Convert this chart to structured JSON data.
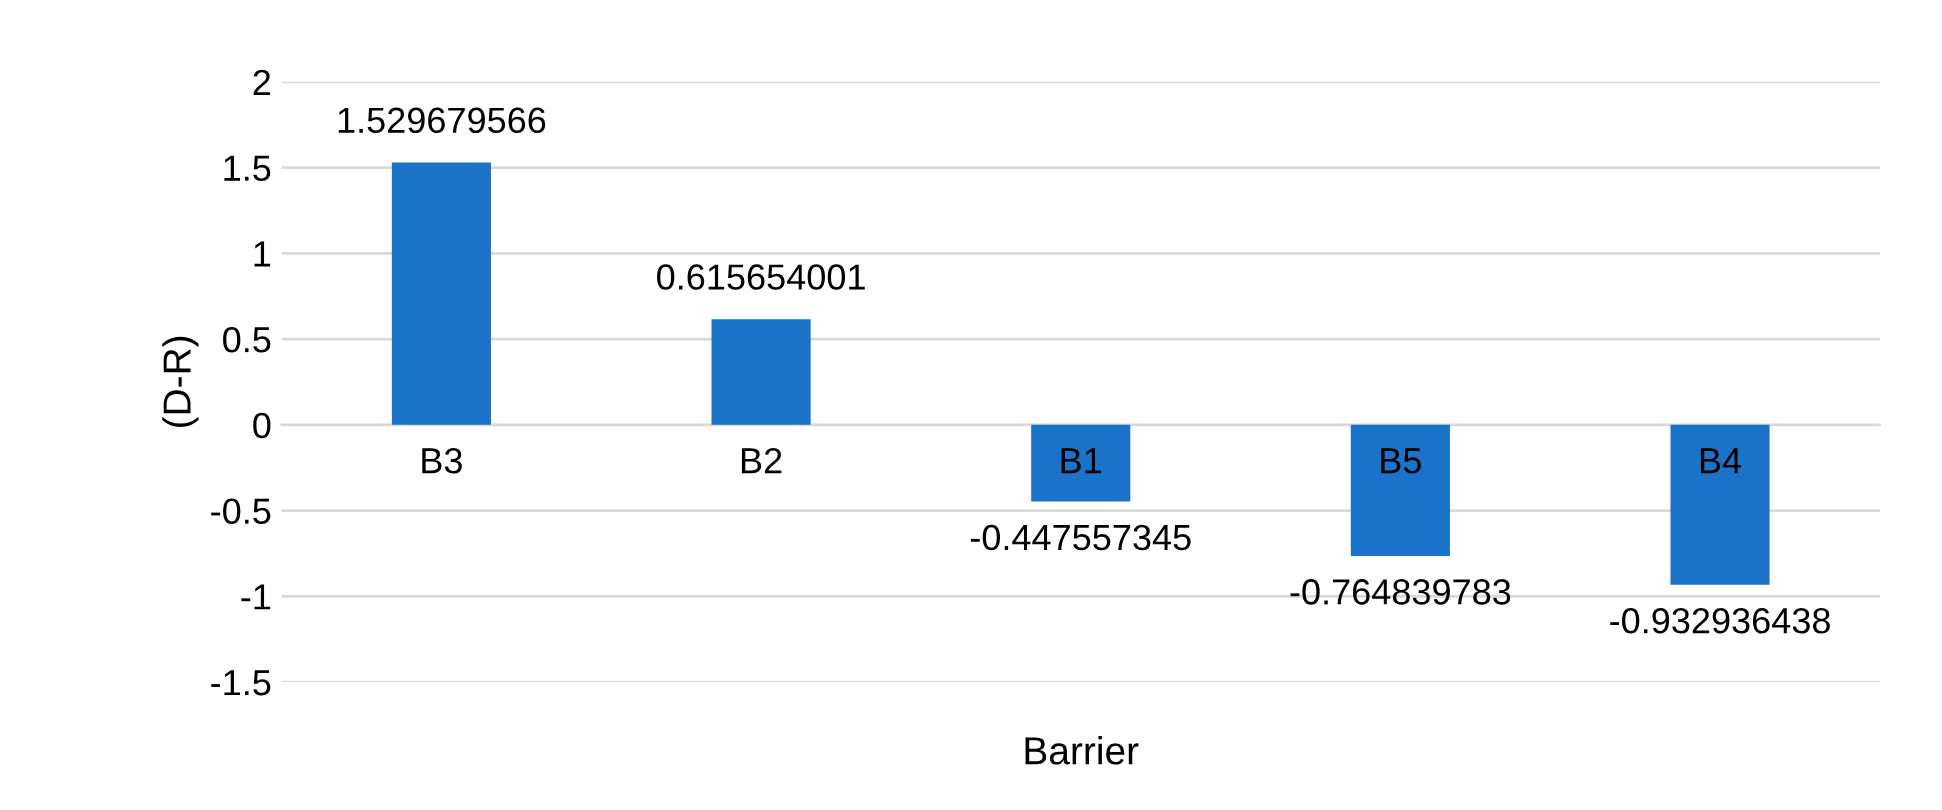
{
  "chart_data": {
    "type": "bar",
    "categories": [
      "B3",
      "B2",
      "B1",
      "B5",
      "B4"
    ],
    "values": [
      1.529679566,
      0.615654001,
      -0.447557345,
      -0.764839783,
      -0.932936438
    ],
    "color": "#1b72c9",
    "xlabel": "Barrier",
    "ylabel": "(D-R)",
    "ylim": [
      -1.5,
      2
    ],
    "yticks": [
      -1.5,
      -1,
      -0.5,
      0,
      0.5,
      1,
      1.5,
      2
    ],
    "grid": "y",
    "data_labels": true
  }
}
